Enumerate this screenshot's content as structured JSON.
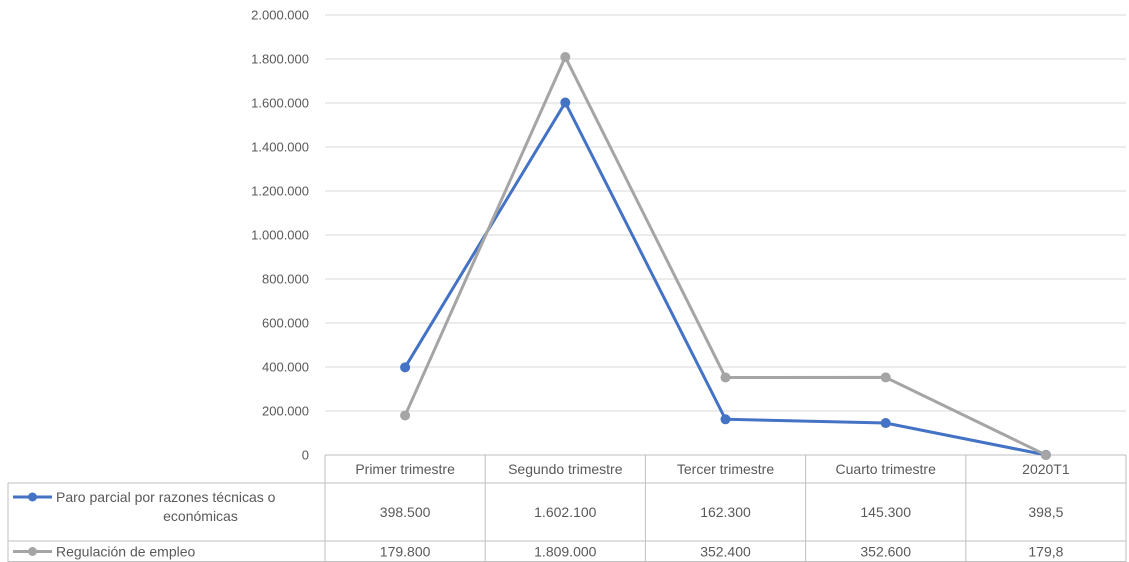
{
  "chart_data": {
    "type": "line",
    "title": "",
    "xlabel": "",
    "ylabel": "",
    "categories": [
      "Primer trimestre",
      "Segundo trimestre",
      "Tercer trimestre",
      "Cuarto trimestre",
      "2020T1"
    ],
    "ylim": [
      0,
      2000000
    ],
    "yticks": [
      0,
      200000,
      400000,
      600000,
      800000,
      1000000,
      1200000,
      1400000,
      1600000,
      1800000,
      2000000
    ],
    "ytick_labels": [
      "0",
      "200.000",
      "400.000",
      "600.000",
      "800.000",
      "1.000.000",
      "1.200.000",
      "1.400.000",
      "1.600.000",
      "1.800.000",
      "2.000.000"
    ],
    "grid": true,
    "legend": "data-table",
    "series": [
      {
        "name": "Paro parcial por razones técnicas o económicas",
        "name_lines": [
          "Paro parcial por razones técnicas o",
          "económicas"
        ],
        "color": "#4472c4",
        "values": [
          398500,
          1602100,
          162300,
          145300,
          398.5
        ],
        "labels": [
          "398.500",
          "1.602.100",
          "162.300",
          "145.300",
          "398,5"
        ]
      },
      {
        "name": "Regulación de empleo",
        "name_lines": [
          "Regulación de empleo"
        ],
        "color": "#a5a5a5",
        "values": [
          179800,
          1809000,
          352400,
          352600,
          179.8
        ],
        "labels": [
          "179.800",
          "1.809.000",
          "352.400",
          "352.600",
          "179,8"
        ]
      }
    ]
  }
}
